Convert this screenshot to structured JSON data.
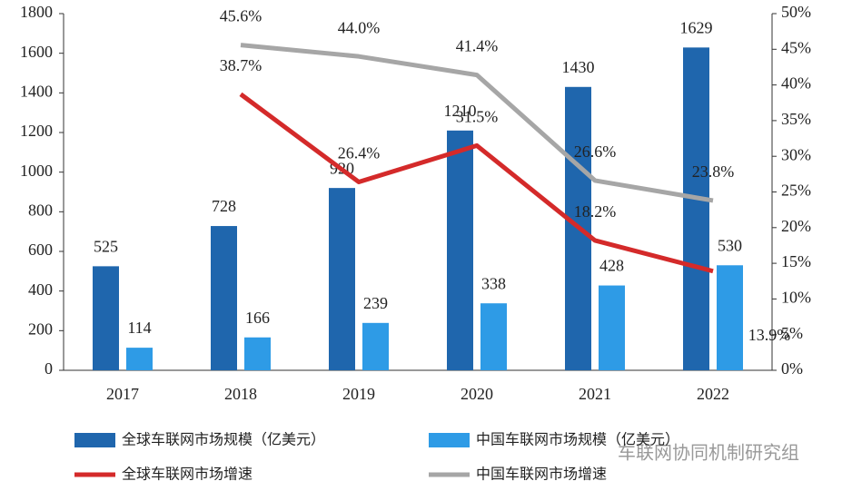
{
  "chart_data": {
    "type": "bar",
    "categories": [
      "2017",
      "2018",
      "2019",
      "2020",
      "2021",
      "2022"
    ],
    "series": [
      {
        "name": "全球车联网市场规模（亿美元）",
        "type": "bar",
        "color": "#1f66ad",
        "values": [
          525,
          728,
          920,
          1210,
          1430,
          1629
        ]
      },
      {
        "name": "中国车联网市场规模（亿美元）",
        "type": "bar",
        "color": "#2e9be6",
        "values": [
          114,
          166,
          239,
          338,
          428,
          530
        ]
      },
      {
        "name": "全球车联网市场增速",
        "type": "line",
        "axis": "y2",
        "color": "#d42a2a",
        "values": [
          null,
          38.7,
          26.4,
          31.5,
          18.2,
          13.9
        ],
        "value_labels": [
          null,
          "38.7%",
          "26.4%",
          "31.5%",
          "18.2%",
          "13.9%"
        ]
      },
      {
        "name": "中国车联网市场增速",
        "type": "line",
        "axis": "y2",
        "color": "#a6a6a6",
        "values": [
          null,
          45.6,
          44.0,
          41.4,
          26.6,
          23.8
        ],
        "value_labels": [
          null,
          "45.6%",
          "44.0%",
          "41.4%",
          "26.6%",
          "23.8%"
        ]
      }
    ],
    "ylim": [
      0,
      1800
    ],
    "yticks": [
      0,
      200,
      400,
      600,
      800,
      1000,
      1200,
      1400,
      1600,
      1800
    ],
    "y2lim": [
      0,
      50
    ],
    "y2ticks": [
      {
        "value": 0,
        "label": "0%"
      },
      {
        "value": 5,
        "label": "5%"
      },
      {
        "value": 10,
        "label": "10%"
      },
      {
        "value": 15,
        "label": "15%"
      },
      {
        "value": 20,
        "label": "20%"
      },
      {
        "value": 25,
        "label": "25%"
      },
      {
        "value": 30,
        "label": "30%"
      },
      {
        "value": 35,
        "label": "35%"
      },
      {
        "value": 40,
        "label": "40%"
      },
      {
        "value": 45,
        "label": "45%"
      },
      {
        "value": 50,
        "label": "50%"
      }
    ],
    "watermark": "车联网协同机制研究组"
  }
}
